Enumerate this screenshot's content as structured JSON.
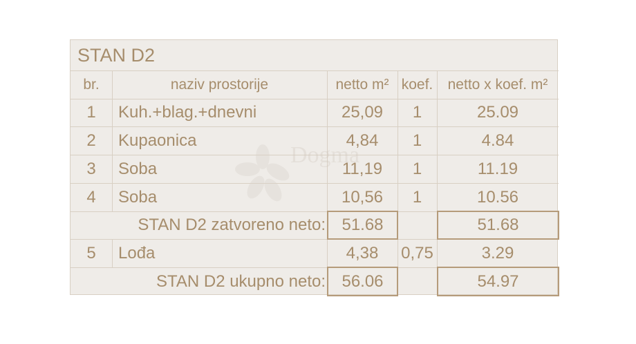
{
  "title": "STAN D2",
  "headers": {
    "no": "br.",
    "name": "naziv prostorije",
    "netto": "netto m²",
    "coef": "koef.",
    "netto_coef": "netto x koef. m²"
  },
  "rows": [
    {
      "no": "1",
      "name": "Kuh.+blag.+dnevni",
      "netto": "25,09",
      "coef": "1",
      "netto_coef": "25.09"
    },
    {
      "no": "2",
      "name": "Kupaonica",
      "netto": "4,84",
      "coef": "1",
      "netto_coef": "4.84"
    },
    {
      "no": "3",
      "name": "Soba",
      "netto": "11,19",
      "coef": "1",
      "netto_coef": "11.19"
    },
    {
      "no": "4",
      "name": "Soba",
      "netto": "10,56",
      "coef": "1",
      "netto_coef": "10.56"
    }
  ],
  "subtotal": {
    "label": "STAN D2 zatvoreno neto:",
    "netto": "51.68",
    "netto_coef": "51.68"
  },
  "loggia": {
    "no": "5",
    "name": "Lođa",
    "netto": "4,38",
    "coef": "0,75",
    "netto_coef": "3.29"
  },
  "total": {
    "label": "STAN D2 ukupno neto:",
    "netto": "56.06",
    "netto_coef": "54.97"
  },
  "watermark": "Dogma",
  "colors": {
    "text": "#a68d6c",
    "background": "#efece8",
    "grid": "#d8cfc3",
    "highlight_border": "#b59b7a"
  }
}
